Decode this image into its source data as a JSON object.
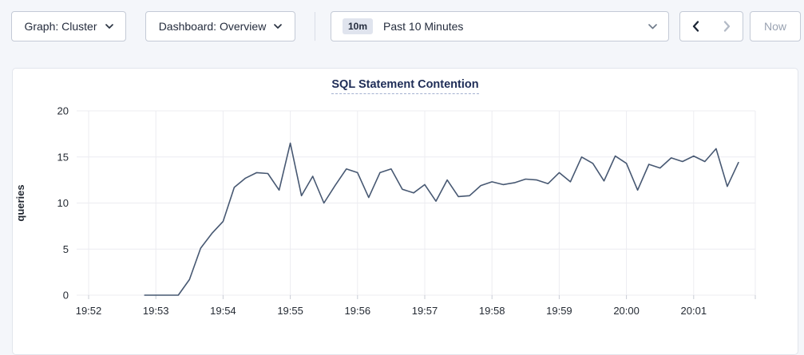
{
  "toolbar": {
    "graph_dropdown": {
      "label": "Graph: Cluster",
      "icon": "chevron-down"
    },
    "dashboard_dropdown": {
      "label": "Dashboard: Overview",
      "icon": "chevron-down"
    },
    "time_picker": {
      "badge": "10m",
      "label": "Past 10 Minutes",
      "icon": "chevron-down"
    },
    "prev_button": {
      "icon": "chevron-left",
      "disabled": false
    },
    "next_button": {
      "icon": "chevron-right",
      "disabled": true
    },
    "now_button": {
      "label": "Now",
      "disabled": true
    }
  },
  "chart": {
    "title": "SQL Statement Contention"
  },
  "chart_data": {
    "type": "line",
    "title": "SQL Statement Contention",
    "xlabel": "",
    "ylabel": "queries",
    "ylim": [
      0,
      20
    ],
    "yticks": [
      0,
      5,
      10,
      15,
      20
    ],
    "x_tick_labels": [
      "19:52",
      "19:53",
      "19:54",
      "19:55",
      "19:56",
      "19:57",
      "19:58",
      "19:59",
      "20:00",
      "20:01"
    ],
    "x_start": "19:52:50",
    "interval_seconds": 10,
    "grid": true,
    "legend_position": "none",
    "line_color": "#475872",
    "grid_color": "#ececf1",
    "tick_color": "#c8ccd5",
    "axis_text_color": "#242a33",
    "series": [
      {
        "name": "queries",
        "values": [
          0,
          0,
          0,
          0,
          1.7,
          5.1,
          6.7,
          8,
          11.7,
          12.7,
          13.3,
          13.2,
          11.4,
          16.5,
          10.8,
          12.9,
          10,
          11.9,
          13.7,
          13.3,
          10.6,
          13.3,
          13.7,
          11.5,
          11.1,
          12,
          10.2,
          12.5,
          10.7,
          10.8,
          11.9,
          12.3,
          12,
          12.2,
          12.6,
          12.5,
          12.1,
          13.3,
          12.3,
          15,
          14.3,
          12.4,
          15.1,
          14.3,
          11.4,
          14.2,
          13.8,
          14.9,
          14.5,
          15.1,
          14.5,
          15.9,
          11.8,
          14.4
        ]
      }
    ]
  }
}
